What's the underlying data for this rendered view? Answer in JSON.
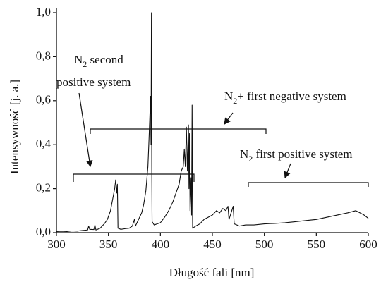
{
  "chart_data": {
    "type": "line",
    "color": "#111111",
    "x_label": "Długość fali [nm]",
    "y_label": "Intensywność [j. a.]",
    "xlim": [
      300,
      600
    ],
    "xticks": [
      300,
      350,
      400,
      450,
      500,
      550,
      600
    ],
    "ylim": [
      0,
      1.0
    ],
    "yticks": [
      {
        "value": 0,
        "label": "0,0"
      },
      {
        "value": 0.2,
        "label": "0,2"
      },
      {
        "value": 0.4,
        "label": "0,4"
      },
      {
        "value": 0.6,
        "label": "0,6"
      },
      {
        "value": 0.8,
        "label": "0,8"
      },
      {
        "value": 1.0,
        "label": "1,0"
      }
    ],
    "x": [
      300,
      305,
      310,
      315,
      320,
      325,
      330,
      331,
      332,
      336,
      337,
      338,
      342,
      346,
      349,
      352,
      354,
      356,
      357,
      358,
      358.6,
      359.2,
      362,
      366,
      370,
      373,
      375,
      376,
      379,
      382,
      384,
      386,
      388,
      389,
      390,
      390.5,
      391,
      391.4,
      391.7,
      392,
      394,
      397,
      400,
      404,
      408,
      412,
      415,
      418,
      420,
      422,
      423,
      424,
      425,
      426,
      427,
      427.5,
      428,
      428.5,
      429.5,
      430,
      430.5,
      431,
      434,
      438,
      442,
      446,
      450,
      454,
      457,
      460,
      463,
      465,
      466,
      468,
      470,
      471,
      476,
      482,
      490,
      500,
      510,
      520,
      530,
      540,
      550,
      560,
      570,
      580,
      588,
      592,
      596,
      600
    ],
    "values": [
      0.005,
      0.006,
      0.005,
      0.008,
      0.007,
      0.01,
      0.012,
      0.03,
      0.015,
      0.014,
      0.035,
      0.012,
      0.02,
      0.04,
      0.06,
      0.1,
      0.15,
      0.2,
      0.24,
      0.18,
      0.22,
      0.02,
      0.015,
      0.018,
      0.02,
      0.03,
      0.06,
      0.03,
      0.06,
      0.09,
      0.13,
      0.19,
      0.3,
      0.42,
      0.55,
      0.62,
      0.4,
      1.0,
      0.3,
      0.05,
      0.035,
      0.04,
      0.045,
      0.07,
      0.1,
      0.14,
      0.18,
      0.22,
      0.28,
      0.3,
      0.38,
      0.3,
      0.48,
      0.28,
      0.49,
      0.2,
      0.45,
      0.1,
      0.25,
      0.08,
      0.58,
      0.02,
      0.03,
      0.04,
      0.06,
      0.07,
      0.08,
      0.1,
      0.09,
      0.11,
      0.1,
      0.12,
      0.06,
      0.09,
      0.12,
      0.04,
      0.03,
      0.035,
      0.035,
      0.04,
      0.042,
      0.045,
      0.05,
      0.055,
      0.06,
      0.07,
      0.08,
      0.09,
      0.1,
      0.09,
      0.08,
      0.065
    ],
    "annotations": [
      {
        "parts": [
          "N",
          "2",
          " second"
        ],
        "line2": "positive system"
      },
      {
        "parts": [
          "N",
          "2",
          "+  first negative system"
        ]
      },
      {
        "parts": [
          "N",
          "2",
          " first positive system"
        ]
      }
    ]
  }
}
